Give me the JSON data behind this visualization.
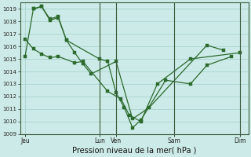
{
  "bg_color": "#cceae7",
  "grid_color": "#aad4d0",
  "line_color": "#2d6a2d",
  "marker_color": "#2d6a2d",
  "xlabel": "Pression niveau de la mer( hPa )",
  "ylim": [
    1009,
    1019.5
  ],
  "yticks": [
    1009,
    1010,
    1011,
    1012,
    1013,
    1014,
    1015,
    1016,
    1017,
    1018,
    1019
  ],
  "xtick_labels": [
    "Jeu",
    "Lun",
    "Ven",
    "Sam",
    "Dim"
  ],
  "xtick_positions": [
    0.0,
    4.5,
    5.5,
    9.0,
    13.0
  ],
  "vlines": [
    4.5,
    5.5,
    9.0,
    13.0
  ],
  "series_x": [
    [
      0.0,
      0.5,
      1.0,
      1.5,
      2.0,
      2.5,
      3.0,
      3.5,
      4.0,
      5.5,
      6.5,
      7.5,
      11.0,
      12.0
    ],
    [
      0.0,
      0.5,
      1.0,
      1.5,
      2.0,
      3.0,
      3.5,
      5.0,
      5.8,
      6.3,
      7.0,
      8.0,
      10.0,
      13.0
    ],
    [
      0.5,
      1.0,
      1.5,
      2.0,
      2.5,
      4.5,
      5.0,
      5.5,
      6.0,
      6.5,
      7.0,
      8.5,
      10.0,
      11.0,
      12.5
    ]
  ],
  "series_y": [
    [
      1015.2,
      1019.0,
      1019.2,
      1018.1,
      1018.3,
      1016.5,
      1015.5,
      1014.6,
      1013.8,
      1014.8,
      1010.2,
      1011.1,
      1016.1,
      1015.7
    ],
    [
      1016.6,
      1015.8,
      1015.4,
      1015.1,
      1015.2,
      1014.7,
      1014.8,
      1012.4,
      1011.8,
      1010.5,
      1010.0,
      1013.0,
      1015.0,
      1015.5
    ],
    [
      1019.0,
      1019.2,
      1018.2,
      1018.4,
      1016.5,
      1015.0,
      1014.8,
      1012.3,
      1011.1,
      1009.5,
      1010.1,
      1013.3,
      1013.0,
      1014.5,
      1015.2
    ]
  ],
  "xmin": -0.3,
  "xmax": 13.5
}
